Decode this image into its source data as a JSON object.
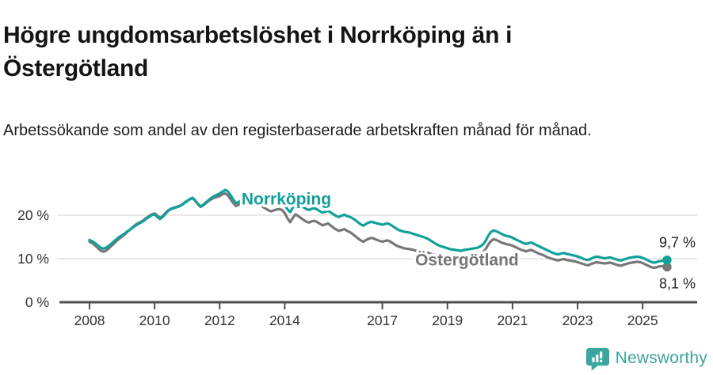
{
  "header": {
    "title": "Högre ungdomsarbetslöshet i Norrköping än i Östergötland",
    "subtitle": "Arbetssökande som andel av den registerbaserade arbetskraften månad för månad."
  },
  "footer": {
    "brand": "Newsworthy",
    "brand_color": "#3ba5a0",
    "logo_icon": "speech-bubble-bar-chart-icon"
  },
  "chart_data": {
    "type": "line",
    "title": "Högre ungdomsarbetslöshet i Norrköping än i Östergötland",
    "subtitle": "Arbetssökande som andel av den registerbaserade arbetskraften månad för månad.",
    "x_unit": "month",
    "x_start_year": 2008,
    "x_start_month": 1,
    "x_end_year": 2025,
    "x_end_month": 10,
    "ylim": [
      0,
      28
    ],
    "yticks": [
      0,
      10,
      20
    ],
    "ytick_labels": [
      "0 %",
      "10 %",
      "20 %"
    ],
    "xticks": [
      2008,
      2010,
      2012,
      2014,
      2017,
      2019,
      2021,
      2023,
      2025
    ],
    "xtick_labels": [
      "2008",
      "2010",
      "2012",
      "2014",
      "2017",
      "2019",
      "2021",
      "2023",
      "2025"
    ],
    "grid": "horizontal",
    "colors": {
      "grid": "#dcdcdc",
      "axis": "#4d4d4d",
      "tick_text": "#333333",
      "end_label_text": "#222222"
    },
    "series": [
      {
        "name": "Östergötland",
        "color": "#777777",
        "end_label": "8,1 %",
        "end_value": 8.1,
        "values": [
          13.9,
          13.6,
          13.1,
          12.5,
          11.9,
          11.6,
          11.8,
          12.3,
          12.9,
          13.5,
          14.1,
          14.6,
          15.1,
          15.6,
          16.2,
          16.7,
          17.3,
          17.8,
          18.2,
          18.5,
          18.9,
          19.4,
          19.8,
          20.2,
          20.4,
          19.9,
          19.4,
          19.8,
          20.5,
          21.1,
          21.5,
          21.7,
          21.9,
          22.1,
          22.4,
          22.9,
          23.3,
          23.7,
          23.9,
          23.3,
          22.5,
          21.9,
          22.3,
          22.8,
          23.3,
          23.7,
          24.0,
          24.2,
          24.4,
          24.8,
          25.0,
          24.6,
          23.7,
          22.8,
          22.1,
          22.4,
          22.8,
          23.1,
          23.4,
          23.5,
          23.4,
          23.1,
          22.7,
          22.3,
          21.9,
          21.5,
          21.1,
          20.9,
          21.1,
          21.3,
          21.4,
          21.2,
          20.5,
          19.3,
          18.4,
          19.4,
          20.2,
          19.8,
          19.3,
          18.9,
          18.5,
          18.3,
          18.6,
          18.7,
          18.4,
          18.0,
          17.7,
          17.9,
          18.1,
          17.6,
          17.1,
          16.7,
          16.4,
          16.6,
          16.8,
          16.4,
          16.1,
          15.7,
          15.2,
          14.7,
          14.2,
          13.9,
          14.3,
          14.6,
          14.8,
          14.6,
          14.3,
          14.1,
          13.9,
          14.1,
          14.2,
          13.9,
          13.5,
          13.1,
          12.8,
          12.6,
          12.4,
          12.3,
          12.2,
          12.1,
          11.9,
          11.8,
          11.7,
          11.6,
          11.5,
          11.3,
          11.1,
          10.9,
          10.8,
          10.7,
          10.7,
          10.6,
          10.5,
          10.5,
          10.4,
          10.4,
          10.3,
          10.3,
          10.4,
          10.4,
          10.5,
          10.6,
          10.6,
          10.7,
          11.0,
          11.4,
          12.1,
          13.2,
          14.0,
          14.5,
          14.3,
          14.0,
          13.7,
          13.5,
          13.3,
          13.2,
          13.0,
          12.7,
          12.4,
          12.1,
          11.9,
          11.7,
          11.9,
          12.0,
          11.7,
          11.4,
          11.1,
          10.9,
          10.6,
          10.3,
          10.1,
          9.9,
          9.7,
          9.6,
          9.8,
          9.9,
          9.7,
          9.6,
          9.5,
          9.4,
          9.2,
          9.0,
          8.8,
          8.6,
          8.5,
          8.8,
          9.0,
          9.2,
          9.1,
          9.0,
          8.9,
          9.0,
          9.1,
          8.9,
          8.7,
          8.5,
          8.4,
          8.6,
          8.8,
          9.0,
          9.1,
          9.2,
          9.3,
          9.2,
          9.0,
          8.7,
          8.4,
          8.1,
          7.9,
          8.0,
          8.2,
          8.3,
          8.2,
          8.1
        ]
      },
      {
        "name": "Norrköping",
        "color": "#11a09a",
        "end_label": "9,7 %",
        "end_value": 9.7,
        "values": [
          14.3,
          14.0,
          13.6,
          13.1,
          12.6,
          12.3,
          12.5,
          12.9,
          13.4,
          14.0,
          14.5,
          15.0,
          15.4,
          15.8,
          16.3,
          16.7,
          17.2,
          17.6,
          18.0,
          18.3,
          18.7,
          19.2,
          19.6,
          20.0,
          20.2,
          19.6,
          19.1,
          19.6,
          20.3,
          21.0,
          21.4,
          21.6,
          21.8,
          22.0,
          22.3,
          22.8,
          23.2,
          23.7,
          24.0,
          23.4,
          22.6,
          22.0,
          22.4,
          23.0,
          23.5,
          24.0,
          24.4,
          24.7,
          25.0,
          25.4,
          25.8,
          25.5,
          24.6,
          23.6,
          22.8,
          23.0,
          23.5,
          23.9,
          24.2,
          24.4,
          24.5,
          24.3,
          24.0,
          23.7,
          23.4,
          23.0,
          22.6,
          22.4,
          22.6,
          22.9,
          23.1,
          22.9,
          22.3,
          21.4,
          20.7,
          21.8,
          22.8,
          22.5,
          22.1,
          21.8,
          21.4,
          21.2,
          21.5,
          21.6,
          21.3,
          20.9,
          20.6,
          20.8,
          21.0,
          20.6,
          20.2,
          19.8,
          19.6,
          19.9,
          20.1,
          19.8,
          19.6,
          19.3,
          18.9,
          18.4,
          17.9,
          17.6,
          18.0,
          18.3,
          18.5,
          18.3,
          18.1,
          18.0,
          17.8,
          18.0,
          18.1,
          17.8,
          17.4,
          17.0,
          16.6,
          16.4,
          16.2,
          16.1,
          16.0,
          15.8,
          15.6,
          15.4,
          15.2,
          15.0,
          14.8,
          14.5,
          14.1,
          13.7,
          13.3,
          13.0,
          12.8,
          12.6,
          12.4,
          12.2,
          12.1,
          12.0,
          11.9,
          11.8,
          12.0,
          12.1,
          12.2,
          12.3,
          12.4,
          12.5,
          12.8,
          13.2,
          14.0,
          15.2,
          16.1,
          16.5,
          16.3,
          16.0,
          15.7,
          15.4,
          15.2,
          15.1,
          14.8,
          14.5,
          14.2,
          13.9,
          13.6,
          13.4,
          13.6,
          13.7,
          13.4,
          13.1,
          12.8,
          12.5,
          12.2,
          11.9,
          11.6,
          11.3,
          11.1,
          11.0,
          11.2,
          11.3,
          11.1,
          11.0,
          10.8,
          10.7,
          10.5,
          10.3,
          10.0,
          9.8,
          9.7,
          10.0,
          10.3,
          10.5,
          10.4,
          10.2,
          10.1,
          10.2,
          10.3,
          10.1,
          9.9,
          9.7,
          9.6,
          9.8,
          10.0,
          10.2,
          10.3,
          10.4,
          10.5,
          10.4,
          10.2,
          9.9,
          9.6,
          9.3,
          9.1,
          9.2,
          9.4,
          9.5,
          9.6,
          9.7
        ]
      }
    ],
    "annotations": [
      {
        "text": "Norrköping",
        "color": "#11a09a",
        "anchor_year": 2014.05,
        "baseline_value": 22.5
      },
      {
        "text": "Östergötland",
        "color": "#757575",
        "anchor_year": 2019.6,
        "baseline_value": 8.5
      }
    ],
    "legend_position": "inline-labels"
  }
}
